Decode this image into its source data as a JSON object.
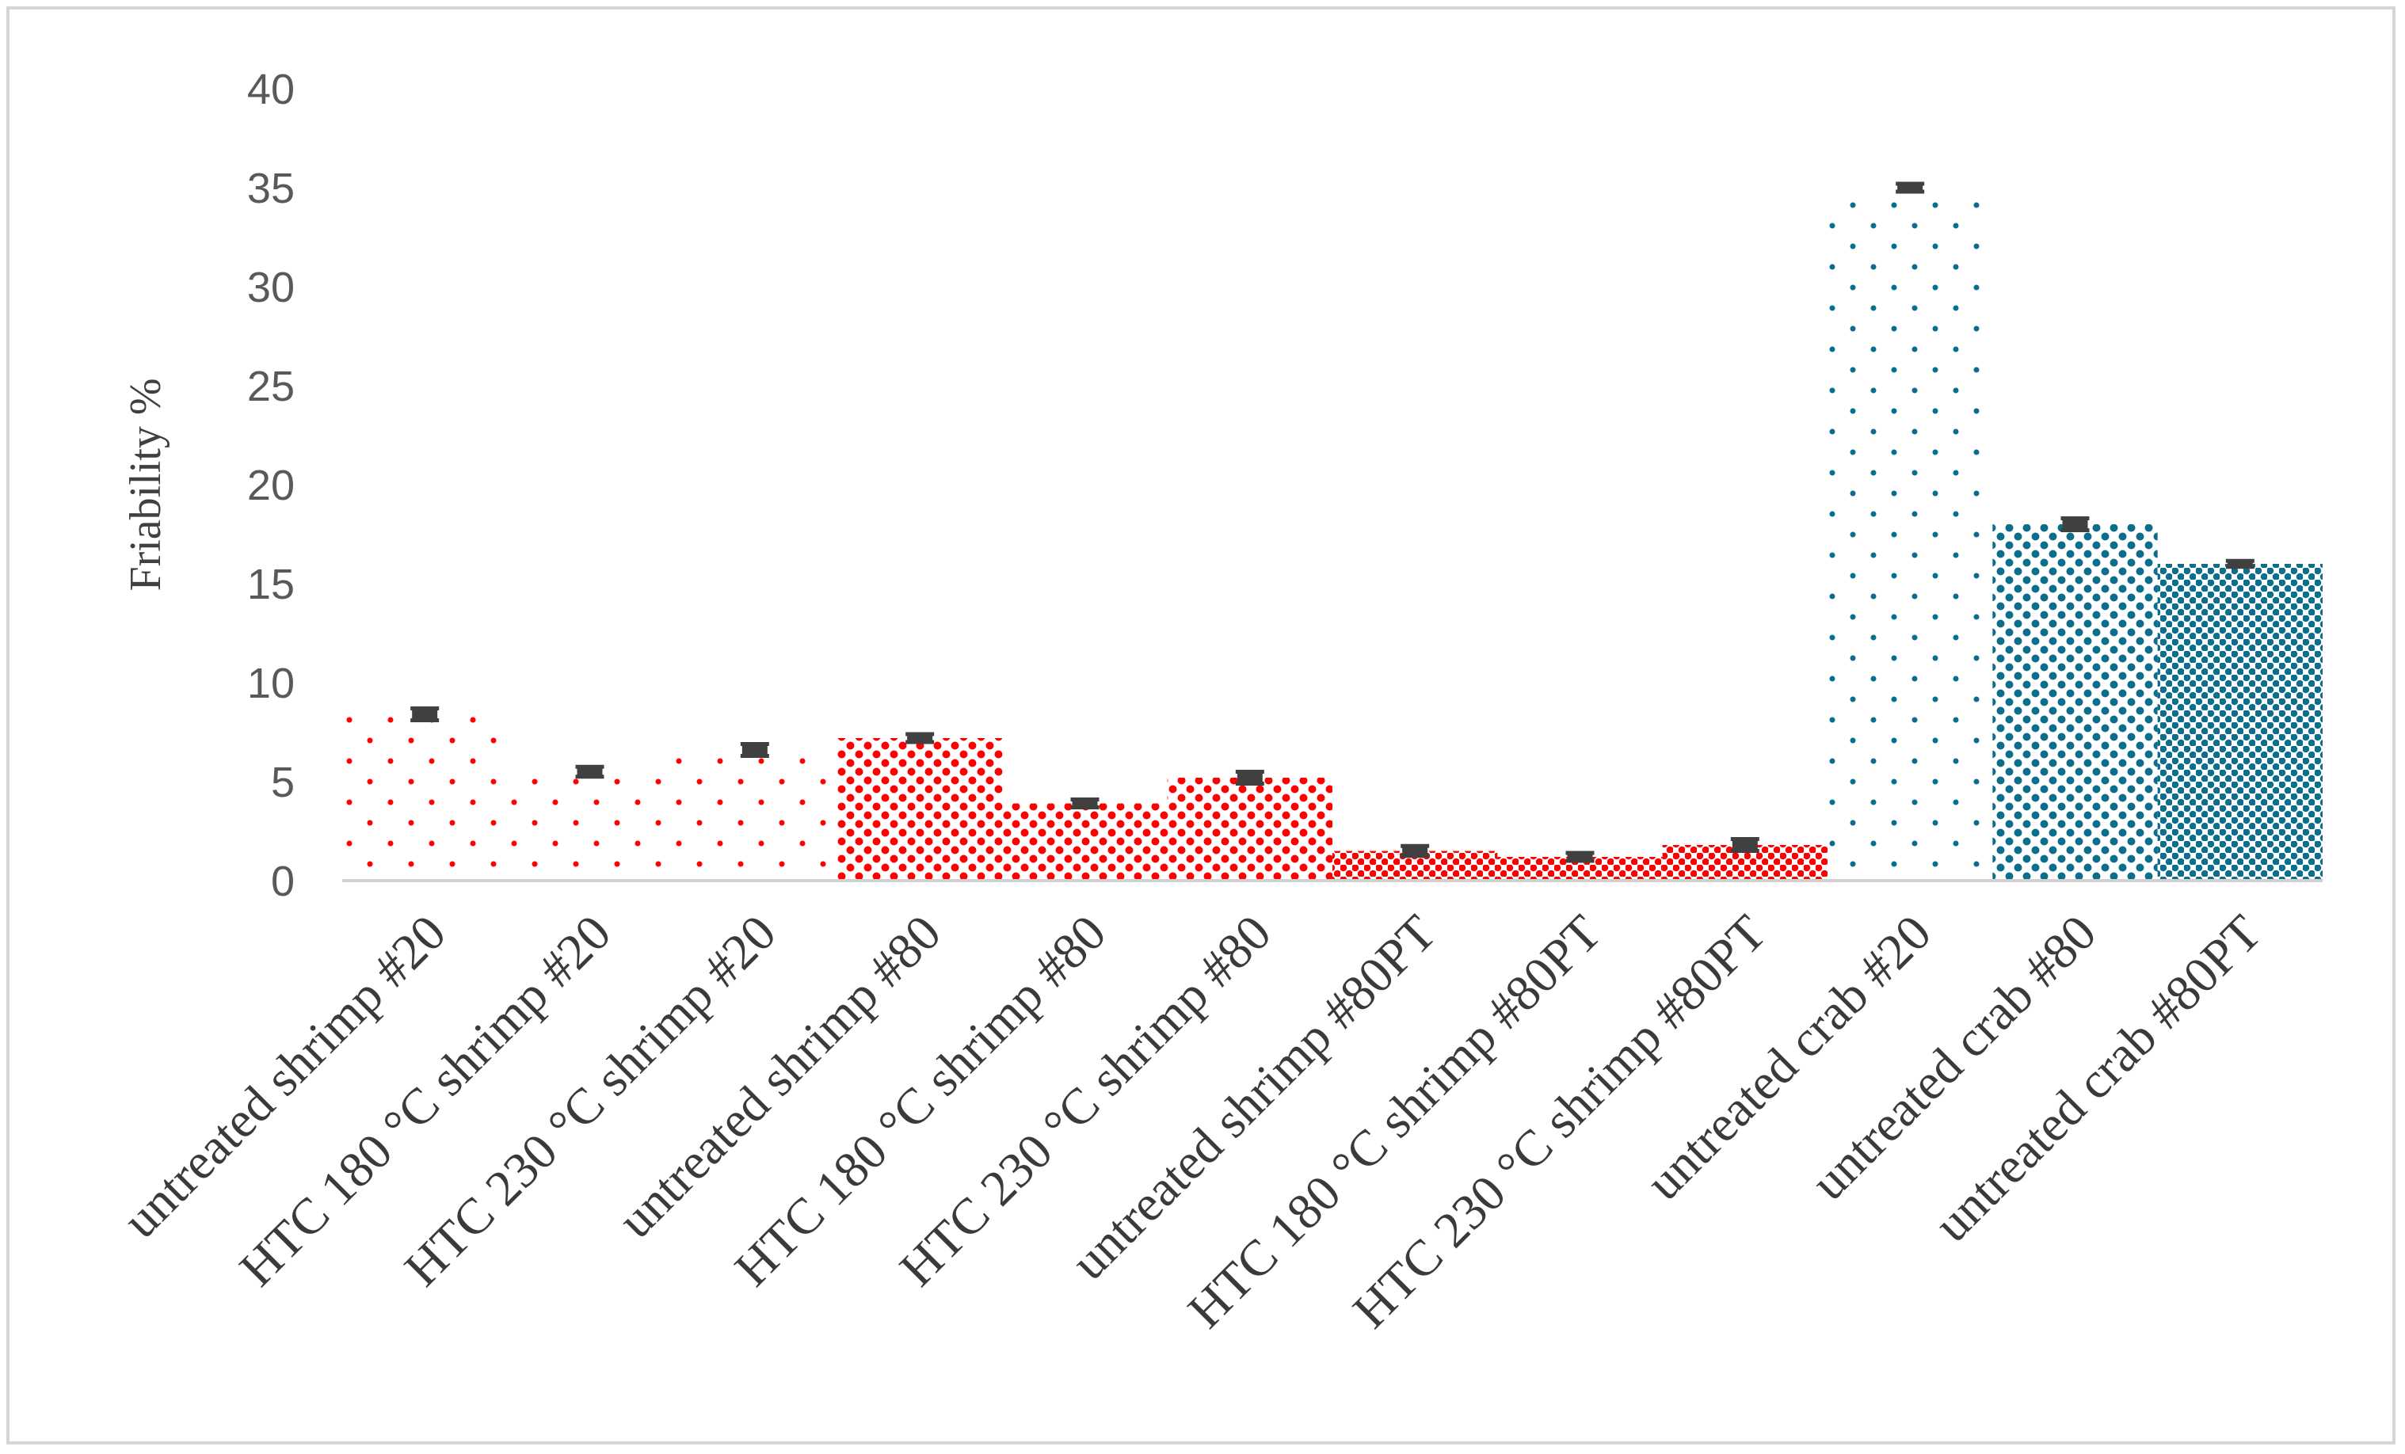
{
  "chart_data": {
    "type": "bar",
    "title": "",
    "xlabel": "",
    "ylabel": "Friability %",
    "ylim": [
      0,
      40
    ],
    "yticks": [
      0,
      5,
      10,
      15,
      20,
      25,
      30,
      35,
      40
    ],
    "grid": false,
    "legend": "none",
    "categories": [
      "untreated shrimp #20",
      "HTC 180 °C shrimp #20",
      "HTC 230 °C shrimp #20",
      "untreated shrimp #80",
      "HTC 180 °C shrimp #80",
      "HTC 230 °C shrimp #80",
      "untreated shrimp #80PT",
      "HTC 180 °C shrimp #80PT",
      "HTC 230 °C shrimp #80PT",
      "untreated crab #20",
      "untreated crab #80",
      "untreated crab #80PT"
    ],
    "values": [
      8.4,
      5.5,
      6.6,
      7.2,
      3.9,
      5.2,
      1.5,
      1.2,
      1.8,
      35.0,
      18.0,
      16.0
    ],
    "errors": [
      0.3,
      0.25,
      0.3,
      0.2,
      0.2,
      0.3,
      0.25,
      0.2,
      0.3,
      0.2,
      0.3,
      0.15
    ],
    "colors": {
      "shrimp": "#ff0000",
      "crab": "#0b6e8c",
      "error_bar": "#404040",
      "axis": "#d0d0d0"
    },
    "bar_colors": [
      "shrimp",
      "shrimp",
      "shrimp",
      "shrimp",
      "shrimp",
      "shrimp",
      "shrimp",
      "shrimp",
      "shrimp",
      "crab",
      "crab",
      "crab"
    ],
    "patterns": [
      "sparse",
      "sparse",
      "sparse",
      "medium",
      "medium",
      "medium",
      "dense",
      "dense",
      "dense",
      "sparse",
      "medium",
      "dense"
    ]
  }
}
